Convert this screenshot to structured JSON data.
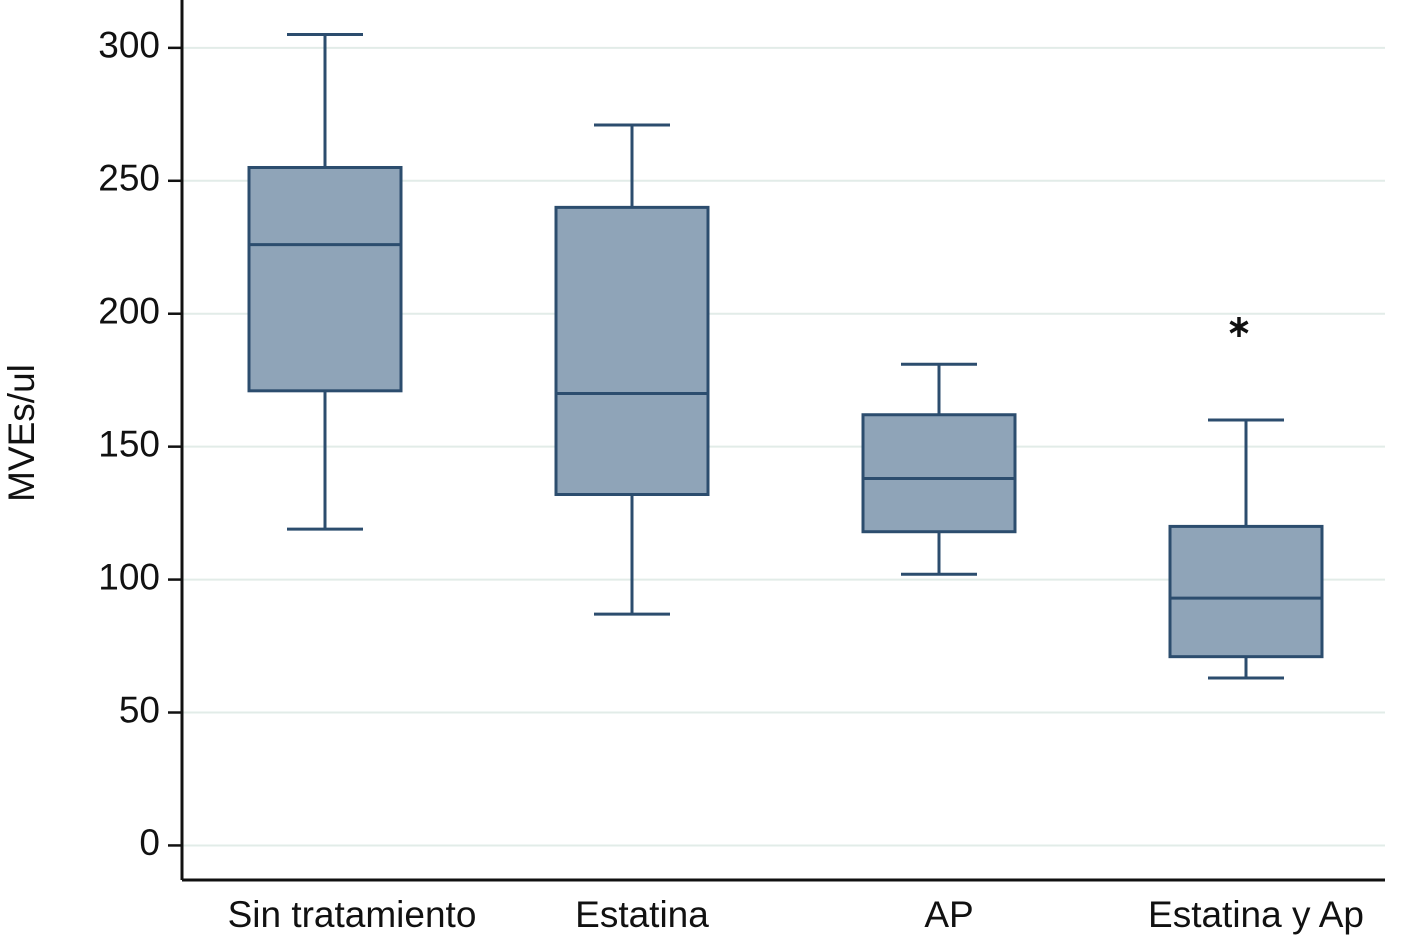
{
  "chart_data": {
    "type": "box",
    "y_label": "MVEs/ul",
    "categories": [
      "Sin tratamiento",
      "Estatina",
      "AP",
      "Estatina y Ap"
    ],
    "max": [
      305,
      271,
      181,
      160
    ],
    "q3": [
      255,
      240,
      162,
      120
    ],
    "median": [
      226,
      170,
      138,
      93
    ],
    "q1": [
      171,
      132,
      118,
      71
    ],
    "min": [
      119,
      87,
      102,
      63
    ],
    "outliers": [
      [],
      [],
      [],
      [
        195
      ]
    ],
    "color": "#8fa4b8",
    "edge_color": "#2c4d6e",
    "ylim": [
      -13,
      318
    ],
    "yticks": [
      0,
      50,
      100,
      150,
      200,
      250,
      300
    ],
    "grid": true
  }
}
